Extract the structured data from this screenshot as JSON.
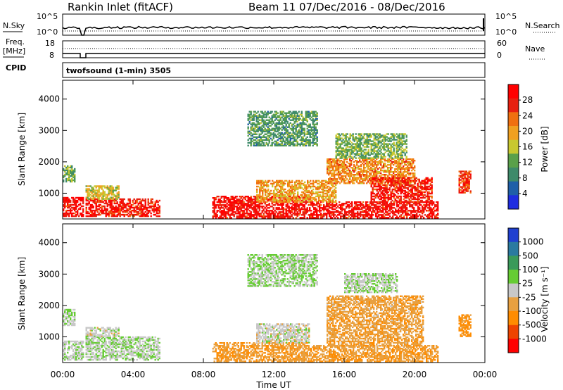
{
  "header": {
    "station": "Rankin Inlet (fitACF)",
    "beam_dates": "Beam 11  07/Dec/2016 - 08/Dec/2016"
  },
  "noise_panel": {
    "left_label": "N.Sky",
    "right_label": "N.Search",
    "left_ticks": [
      "10^5",
      "10^0"
    ],
    "right_ticks": [
      "10^5",
      "10^0"
    ]
  },
  "freq_panel": {
    "left_label_1": "Freq.",
    "left_label_2": "[MHz]",
    "right_label": "Nave",
    "left_ticks": [
      "18",
      "8"
    ],
    "right_ticks": [
      "60",
      "0"
    ]
  },
  "cpid": {
    "label": "CPID",
    "value": "twofsound (1-min) 3505"
  },
  "colors": {
    "power": [
      "#1f2de0",
      "#1f5fa8",
      "#3e8a6a",
      "#5aa04a",
      "#c8c830",
      "#f0a020",
      "#f07010",
      "#e82010",
      "#ff0000"
    ],
    "velocity": [
      "#ff0000",
      "#ee4400",
      "#ff8c00",
      "#e8a040",
      "#c8c8c8",
      "#66cc33",
      "#3a9a5a",
      "#2a7aa0",
      "#2040d0"
    ]
  },
  "chart_data": [
    {
      "type": "heatmap",
      "name": "power",
      "title": "",
      "xlabel": "",
      "ylabel": "Slant Range [km]",
      "xlim": [
        0,
        24
      ],
      "ylim": [
        180,
        4600
      ],
      "x_ticks": [
        "00:00",
        "04:00",
        "08:00",
        "12:00",
        "16:00",
        "20:00",
        "00:00"
      ],
      "y_ticks": [
        "1000",
        "2000",
        "3000",
        "4000"
      ],
      "colorbar": {
        "label": "Power [dB]",
        "ticks": [
          "4",
          "8",
          "12",
          "16",
          "20",
          "24",
          "28"
        ],
        "range": [
          0,
          30
        ]
      },
      "regions": [
        {
          "t0": 0.0,
          "t1": 1.2,
          "r0": 250,
          "r1": 850,
          "level": 27
        },
        {
          "t0": 0.0,
          "t1": 0.7,
          "r0": 1350,
          "r1": 1850,
          "level": 12
        },
        {
          "t0": 1.3,
          "t1": 5.5,
          "r0": 250,
          "r1": 800,
          "level": 26
        },
        {
          "t0": 1.3,
          "t1": 3.2,
          "r0": 800,
          "r1": 1250,
          "level": 16
        },
        {
          "t0": 8.5,
          "t1": 14.0,
          "r0": 200,
          "r1": 900,
          "level": 27
        },
        {
          "t0": 14.0,
          "t1": 21.3,
          "r0": 200,
          "r1": 700,
          "level": 27
        },
        {
          "t0": 11.0,
          "t1": 15.5,
          "r0": 700,
          "r1": 1400,
          "level": 19
        },
        {
          "t0": 15.0,
          "t1": 20.0,
          "r0": 1300,
          "r1": 2100,
          "level": 20
        },
        {
          "t0": 17.5,
          "t1": 21.0,
          "r0": 700,
          "r1": 1500,
          "level": 26
        },
        {
          "t0": 22.5,
          "t1": 23.2,
          "r0": 1000,
          "r1": 1700,
          "level": 25
        },
        {
          "t0": 10.5,
          "t1": 14.5,
          "r0": 2500,
          "r1": 3600,
          "level": 10
        },
        {
          "t0": 15.5,
          "t1": 19.5,
          "r0": 2100,
          "r1": 2900,
          "level": 12
        }
      ]
    },
    {
      "type": "heatmap",
      "name": "velocity",
      "title": "",
      "xlabel": "Time UT",
      "ylabel": "Slant Range [km]",
      "xlim": [
        0,
        24
      ],
      "ylim": [
        180,
        4600
      ],
      "x_ticks": [
        "00:00",
        "04:00",
        "08:00",
        "12:00",
        "16:00",
        "20:00",
        "00:00"
      ],
      "y_ticks": [
        "1000",
        "2000",
        "3000",
        "4000"
      ],
      "colorbar": {
        "label": "Velocity [m s⁻¹]",
        "ticks": [
          "1000",
          "500",
          "100",
          "25",
          "-25",
          "-100",
          "-500",
          "-1000"
        ],
        "range": [
          -1000,
          1000
        ]
      },
      "regions": [
        {
          "t0": 0.0,
          "t1": 1.2,
          "r0": 250,
          "r1": 850,
          "level": 50
        },
        {
          "t0": 0.0,
          "t1": 0.7,
          "r0": 1350,
          "r1": 1850,
          "level": 120
        },
        {
          "t0": 1.3,
          "t1": 5.5,
          "r0": 250,
          "r1": 1000,
          "level": 80
        },
        {
          "t0": 1.3,
          "t1": 3.2,
          "r0": 1000,
          "r1": 1300,
          "level": 0
        },
        {
          "t0": 8.5,
          "t1": 14.0,
          "r0": 200,
          "r1": 800,
          "level": -300
        },
        {
          "t0": 11.0,
          "t1": 14.0,
          "r0": 800,
          "r1": 1400,
          "level": 0
        },
        {
          "t0": 14.0,
          "t1": 21.3,
          "r0": 200,
          "r1": 700,
          "level": -300
        },
        {
          "t0": 15.0,
          "t1": 20.5,
          "r0": 700,
          "r1": 2300,
          "level": -250
        },
        {
          "t0": 22.5,
          "t1": 23.2,
          "r0": 1000,
          "r1": 1700,
          "level": -400
        },
        {
          "t0": 16.0,
          "t1": 19.0,
          "r0": 2400,
          "r1": 3000,
          "level": 90
        },
        {
          "t0": 10.5,
          "t1": 14.5,
          "r0": 2600,
          "r1": 3600,
          "level": 120
        }
      ]
    }
  ]
}
